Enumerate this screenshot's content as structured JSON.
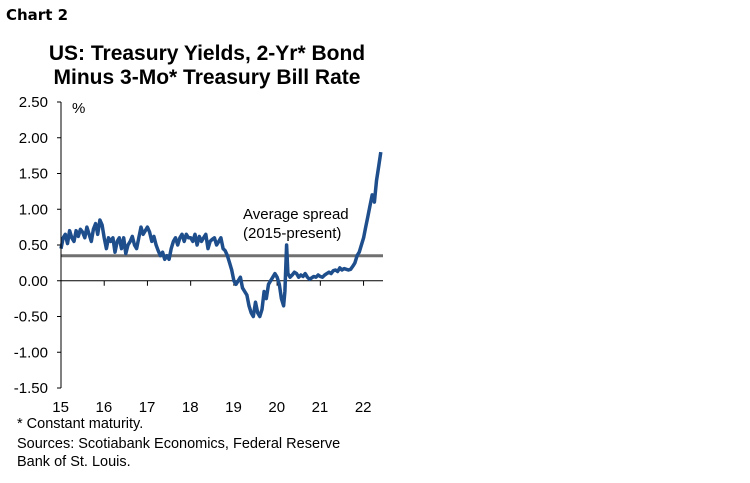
{
  "header": {
    "chart_label": "Chart 2",
    "title_line1": "US: Treasury Yields, 2-Yr* Bond",
    "title_line2": "Minus 3-Mo* Treasury Bill Rate"
  },
  "footnotes": {
    "note": "* Constant maturity.",
    "sources_line1": "Sources: Scotiabank Economics, Federal Reserve",
    "sources_line2": "Bank of St. Louis."
  },
  "colors": {
    "series": "#1f4e8c",
    "average_line": "#707070",
    "axis": "#000000"
  },
  "chart_data": {
    "type": "line",
    "title": "US: Treasury Yields, 2-Yr* Bond Minus 3-Mo* Treasury Bill Rate",
    "ylabel": "%",
    "xlabel": "",
    "ylim": [
      -1.5,
      2.5
    ],
    "xlim": [
      2015.0,
      2022.45
    ],
    "y_ticks": [
      "2.50",
      "2.00",
      "1.50",
      "1.00",
      "0.50",
      "0.00",
      "-0.50",
      "-1.00",
      "-1.50"
    ],
    "x_ticks": [
      "15",
      "16",
      "17",
      "18",
      "19",
      "20",
      "21",
      "22"
    ],
    "grid": false,
    "series": [
      {
        "x": [
          2015.0,
          2015.05,
          2015.1,
          2015.15,
          2015.2,
          2015.25,
          2015.3,
          2015.35,
          2015.4,
          2015.45,
          2015.5,
          2015.55,
          2015.6,
          2015.65,
          2015.7,
          2015.75,
          2015.8,
          2015.85,
          2015.9,
          2015.95,
          2016.0,
          2016.05,
          2016.1,
          2016.15,
          2016.2,
          2016.25,
          2016.3,
          2016.35,
          2016.4,
          2016.45,
          2016.5,
          2016.55,
          2016.6,
          2016.65,
          2016.7,
          2016.75,
          2016.8,
          2016.85,
          2016.9,
          2016.95,
          2017.0,
          2017.05,
          2017.1,
          2017.15,
          2017.2,
          2017.25,
          2017.3,
          2017.35,
          2017.4,
          2017.45,
          2017.5,
          2017.55,
          2017.6,
          2017.65,
          2017.7,
          2017.75,
          2017.8,
          2017.85,
          2017.9,
          2017.95,
          2018.0,
          2018.05,
          2018.1,
          2018.15,
          2018.2,
          2018.25,
          2018.3,
          2018.35,
          2018.4,
          2018.45,
          2018.5,
          2018.55,
          2018.6,
          2018.65,
          2018.7,
          2018.75,
          2018.8,
          2018.85,
          2018.9,
          2018.95,
          2019.0,
          2019.05,
          2019.1,
          2019.15,
          2019.2,
          2019.25,
          2019.3,
          2019.35,
          2019.4,
          2019.45,
          2019.5,
          2019.55,
          2019.6,
          2019.65,
          2019.7,
          2019.75,
          2019.8,
          2019.85,
          2019.9,
          2019.95,
          2020.0,
          2020.05,
          2020.1,
          2020.15,
          2020.18,
          2020.2,
          2020.22,
          2020.25,
          2020.3,
          2020.35,
          2020.4,
          2020.45,
          2020.5,
          2020.55,
          2020.6,
          2020.65,
          2020.7,
          2020.75,
          2020.8,
          2020.85,
          2020.9,
          2020.95,
          2021.0,
          2021.05,
          2021.1,
          2021.15,
          2021.2,
          2021.25,
          2021.3,
          2021.35,
          2021.4,
          2021.45,
          2021.5,
          2021.55,
          2021.6,
          2021.65,
          2021.7,
          2021.75,
          2021.8,
          2021.85,
          2021.9,
          2021.95,
          2022.0,
          2022.05,
          2022.1,
          2022.15,
          2022.2,
          2022.25,
          2022.3,
          2022.35,
          2022.4
        ],
        "values": [
          0.45,
          0.6,
          0.65,
          0.52,
          0.7,
          0.6,
          0.55,
          0.7,
          0.62,
          0.72,
          0.68,
          0.6,
          0.75,
          0.65,
          0.55,
          0.72,
          0.8,
          0.65,
          0.85,
          0.78,
          0.6,
          0.45,
          0.6,
          0.55,
          0.6,
          0.4,
          0.55,
          0.6,
          0.45,
          0.6,
          0.38,
          0.5,
          0.55,
          0.62,
          0.5,
          0.45,
          0.6,
          0.75,
          0.65,
          0.7,
          0.75,
          0.68,
          0.55,
          0.62,
          0.5,
          0.42,
          0.35,
          0.4,
          0.3,
          0.35,
          0.3,
          0.45,
          0.55,
          0.6,
          0.5,
          0.6,
          0.65,
          0.55,
          0.65,
          0.6,
          0.6,
          0.55,
          0.65,
          0.5,
          0.62,
          0.55,
          0.6,
          0.65,
          0.45,
          0.55,
          0.58,
          0.6,
          0.5,
          0.55,
          0.6,
          0.45,
          0.42,
          0.35,
          0.25,
          0.15,
          0.0,
          -0.05,
          0.0,
          0.05,
          -0.1,
          -0.15,
          -0.2,
          -0.35,
          -0.45,
          -0.5,
          -0.3,
          -0.45,
          -0.5,
          -0.4,
          -0.15,
          -0.25,
          -0.05,
          0.0,
          0.05,
          0.1,
          0.05,
          -0.05,
          -0.25,
          -0.35,
          -0.15,
          0.2,
          0.5,
          0.1,
          0.05,
          0.08,
          0.12,
          0.1,
          0.05,
          0.08,
          0.06,
          0.1,
          0.05,
          0.02,
          0.04,
          0.06,
          0.05,
          0.08,
          0.06,
          0.05,
          0.08,
          0.1,
          0.12,
          0.1,
          0.14,
          0.15,
          0.13,
          0.18,
          0.15,
          0.17,
          0.16,
          0.15,
          0.16,
          0.2,
          0.25,
          0.35,
          0.4,
          0.5,
          0.6,
          0.75,
          0.9,
          1.05,
          1.2,
          1.1,
          1.4,
          1.6,
          1.8
        ]
      }
    ],
    "reference_line": {
      "y": 0.35
    },
    "annotations": [
      "Average spread",
      "(2015-present)"
    ]
  }
}
